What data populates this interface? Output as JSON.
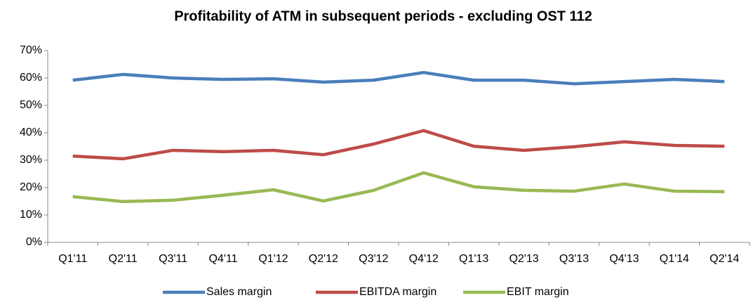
{
  "chart_data": {
    "type": "line",
    "title": "Profitability of ATM in subsequent periods - excluding OST 112",
    "categories": [
      "Q1'11",
      "Q2'11",
      "Q3'11",
      "Q4'11",
      "Q1'12",
      "Q2'12",
      "Q3'12",
      "Q4'12",
      "Q1'13",
      "Q2'13",
      "Q3'13",
      "Q4'13",
      "Q1'14",
      "Q2'14"
    ],
    "series": [
      {
        "name": "Sales margin",
        "color": "#4a7ebb",
        "values": [
          59.2,
          61.3,
          60,
          59.5,
          59.7,
          58.5,
          59.2,
          62,
          59.2,
          59.2,
          57.9,
          58.7,
          59.5,
          58.7
        ]
      },
      {
        "name": "EBITDA margin",
        "color": "#be4b48",
        "values": [
          31.5,
          30.5,
          33.6,
          33.1,
          33.6,
          32,
          35.9,
          40.8,
          35.1,
          33.6,
          34.9,
          36.7,
          35.4,
          35.1
        ]
      },
      {
        "name": "EBIT margin",
        "color": "#98b954",
        "values": [
          16.7,
          14.9,
          15.4,
          17.2,
          19.2,
          15.1,
          19,
          25.4,
          20.3,
          19,
          18.7,
          21.3,
          18.7,
          18.5
        ]
      }
    ],
    "ylim": [
      0,
      70
    ],
    "yticks": [
      {
        "value": 0,
        "label": "0%"
      },
      {
        "value": 10,
        "label": "10%"
      },
      {
        "value": 20,
        "label": "20%"
      },
      {
        "value": 30,
        "label": "30%"
      },
      {
        "value": 40,
        "label": "40%"
      },
      {
        "value": 50,
        "label": "50%"
      },
      {
        "value": 60,
        "label": "60%"
      },
      {
        "value": 70,
        "label": "70%"
      }
    ],
    "legend": "bottom"
  }
}
